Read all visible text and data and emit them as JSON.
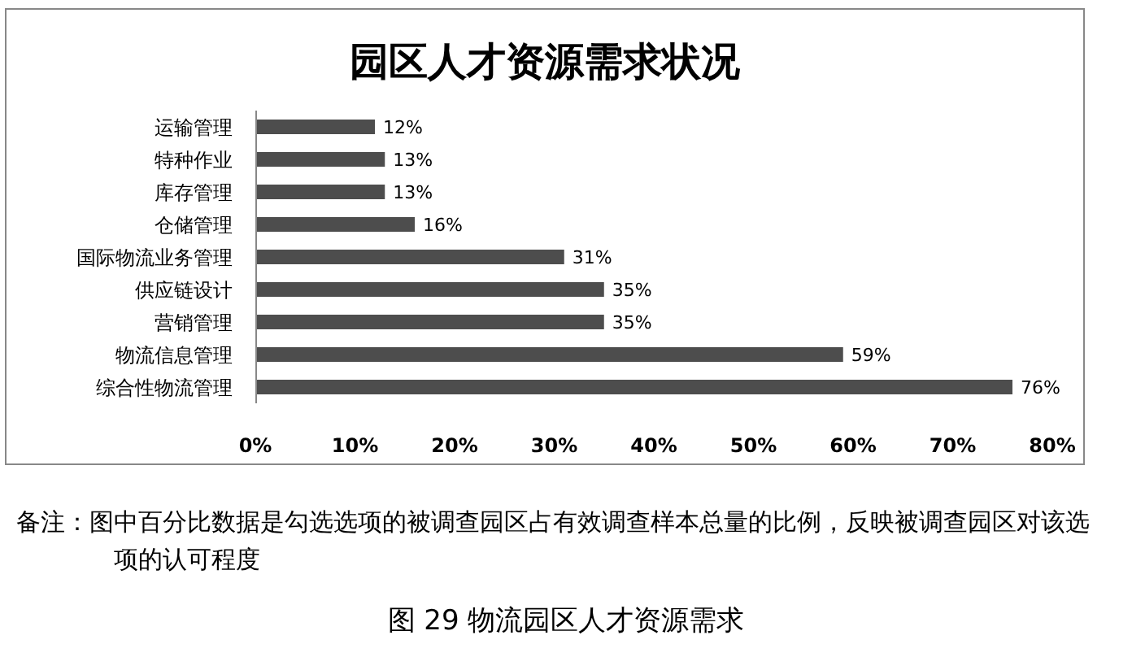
{
  "chart_data": {
    "type": "bar",
    "orientation": "horizontal",
    "title": "园区人才资源需求状况",
    "categories": [
      "运输管理",
      "特种作业",
      "库存管理",
      "仓储管理",
      "国际物流业务管理",
      "供应链设计",
      "营销管理",
      "物流信息管理",
      "综合性物流管理"
    ],
    "values": [
      12,
      13,
      13,
      16,
      31,
      35,
      35,
      59,
      76
    ],
    "value_labels": [
      "12%",
      "13%",
      "13%",
      "16%",
      "31%",
      "35%",
      "35%",
      "59%",
      "76%"
    ],
    "color": "#4d4d4d",
    "xlim": [
      0,
      80
    ],
    "xticks": [
      {
        "value": 0,
        "label": "0%"
      },
      {
        "value": 10,
        "label": "10%"
      },
      {
        "value": 20,
        "label": "20%"
      },
      {
        "value": 30,
        "label": "30%"
      },
      {
        "value": 40,
        "label": "40%"
      },
      {
        "value": 50,
        "label": "50%"
      },
      {
        "value": 60,
        "label": "60%"
      },
      {
        "value": 70,
        "label": "70%"
      },
      {
        "value": 80,
        "label": "80%"
      }
    ],
    "annotations": [
      "备注：图中百分比数据是勾选选项的被调查园区占有效调查样本总量的比例，反映被调查园区对该选项的认可程度",
      "图 29  物流园区人才资源需求"
    ]
  }
}
